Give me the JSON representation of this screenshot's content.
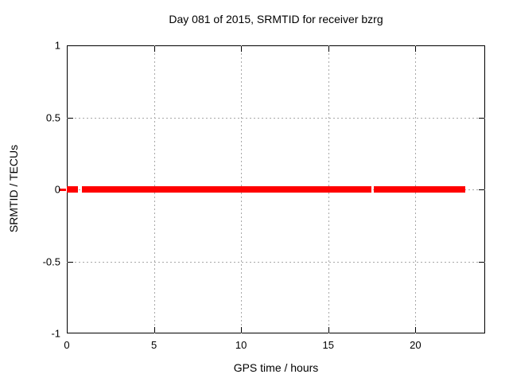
{
  "window": {
    "background": "#ffffff",
    "text_color": "#000000"
  },
  "chart_data": {
    "type": "line",
    "title": "Day 081 of 2015, SRMTID for receiver bzrg",
    "xlabel": "GPS time / hours",
    "ylabel": "SRMTID / TECUs",
    "xlim": [
      0,
      24
    ],
    "ylim": [
      -1,
      1
    ],
    "xticks": [
      {
        "v": 0,
        "label": "0"
      },
      {
        "v": 5,
        "label": "5"
      },
      {
        "v": 10,
        "label": "10"
      },
      {
        "v": 15,
        "label": "15"
      },
      {
        "v": 20,
        "label": "20"
      }
    ],
    "yticks": [
      {
        "v": -1,
        "label": "-1"
      },
      {
        "v": -0.5,
        "label": "-0.5"
      },
      {
        "v": 0,
        "label": "0"
      },
      {
        "v": 0.5,
        "label": "0.5"
      },
      {
        "v": 1,
        "label": "1"
      }
    ],
    "grid": true,
    "grid_style": "dotted",
    "grid_color": "#a8a8a8",
    "border_color": "#000000",
    "legend": "none",
    "series": [
      {
        "name": "SRMTID",
        "color": "#ff0000",
        "y_value": 0,
        "line_thickness_px": 8,
        "segments_hours": [
          [
            0,
            0.64
          ],
          [
            0.87,
            17.48
          ],
          [
            17.61,
            22.84
          ]
        ],
        "left_overhang_dash_hours": [
          -0.46,
          -0.05
        ],
        "left_overhang_dash_thickness_px": 3
      }
    ]
  }
}
